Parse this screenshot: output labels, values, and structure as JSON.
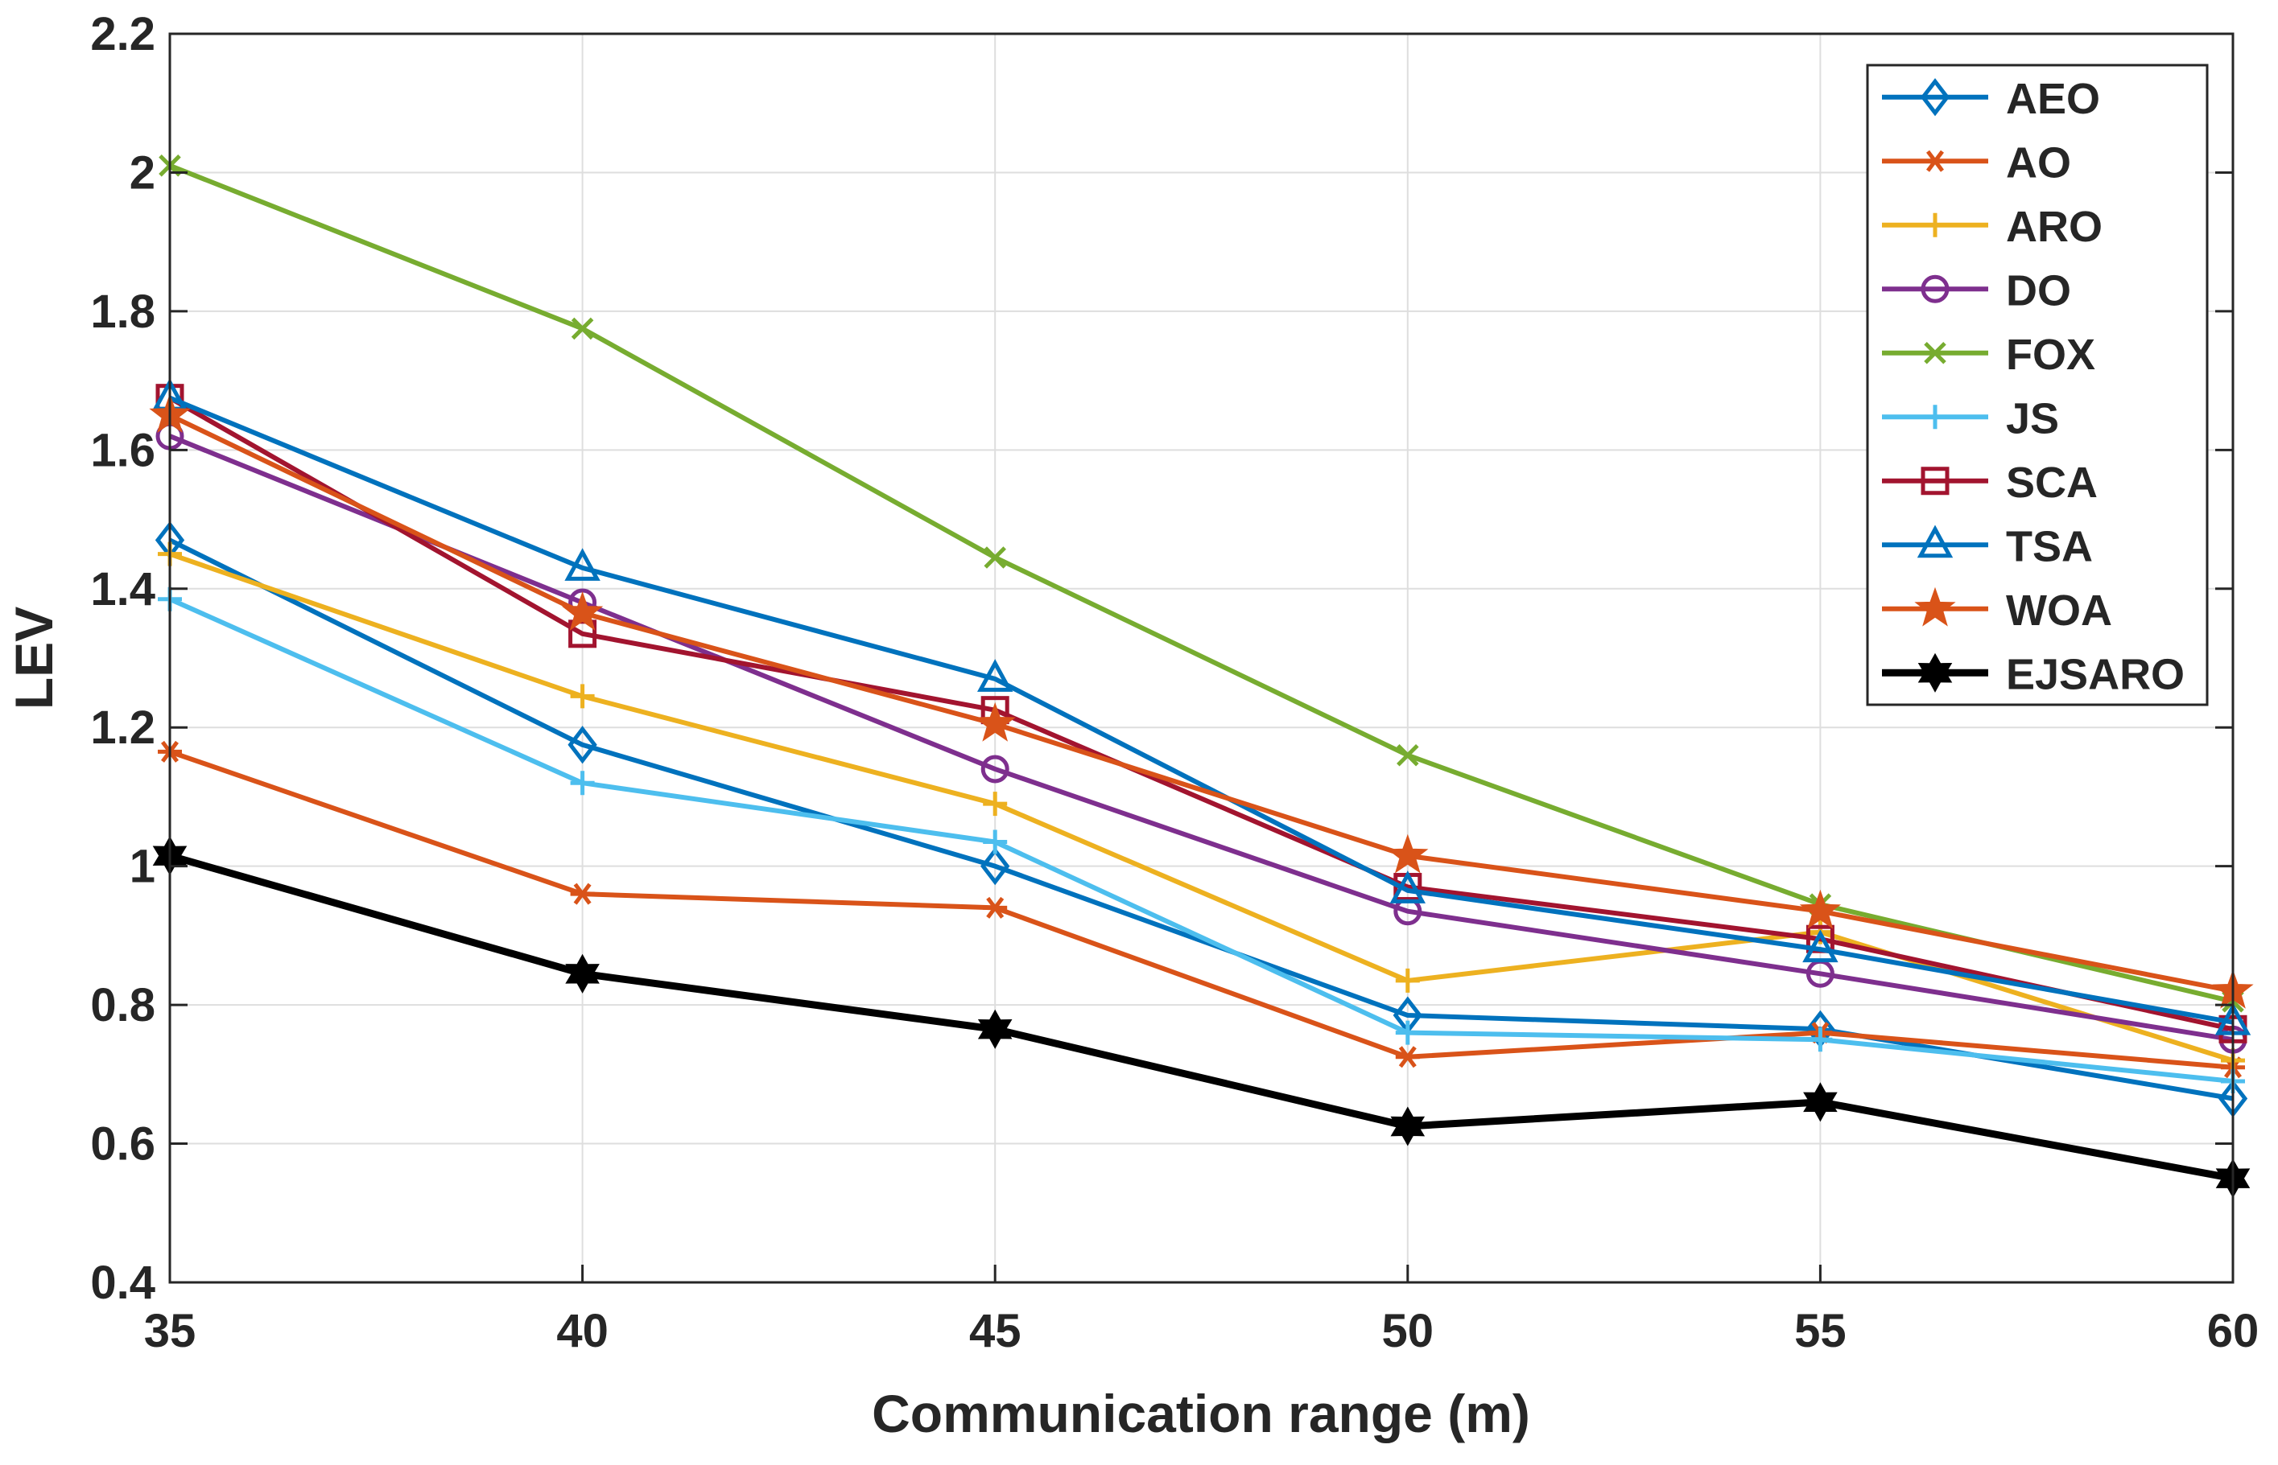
{
  "chart_data": {
    "type": "line",
    "title": "",
    "xlabel": "Communication range (m)",
    "ylabel": "LEV",
    "x": [
      35,
      40,
      45,
      50,
      55,
      60
    ],
    "xlim": [
      35,
      60
    ],
    "ylim": [
      0.4,
      2.2
    ],
    "xticks": [
      "35",
      "40",
      "45",
      "50",
      "55",
      "60"
    ],
    "yticks": [
      "0.4",
      "0.6",
      "0.8",
      "1",
      "1.2",
      "1.4",
      "1.6",
      "1.8",
      "2",
      "2.2"
    ],
    "grid": true,
    "legend_position": "top-right",
    "series": [
      {
        "name": "AEO",
        "color": "#0072BD",
        "marker": "diamond",
        "values": [
          1.47,
          1.175,
          1.0,
          0.785,
          0.765,
          0.665
        ]
      },
      {
        "name": "AO",
        "color": "#D95319",
        "marker": "asterisk",
        "values": [
          1.165,
          0.96,
          0.94,
          0.725,
          0.76,
          0.71
        ]
      },
      {
        "name": "ARO",
        "color": "#EDB120",
        "marker": "plus",
        "values": [
          1.45,
          1.245,
          1.09,
          0.835,
          0.905,
          0.72
        ]
      },
      {
        "name": "DO",
        "color": "#7E2F8E",
        "marker": "circle",
        "values": [
          1.62,
          1.38,
          1.14,
          0.935,
          0.845,
          0.75
        ]
      },
      {
        "name": "FOX",
        "color": "#77AC30",
        "marker": "x",
        "values": [
          2.01,
          1.775,
          1.445,
          1.16,
          0.945,
          0.805
        ]
      },
      {
        "name": "JS",
        "color": "#4DBEEE",
        "marker": "plus",
        "values": [
          1.385,
          1.12,
          1.035,
          0.76,
          0.75,
          0.69
        ]
      },
      {
        "name": "SCA",
        "color": "#A2142F",
        "marker": "square",
        "values": [
          1.675,
          1.335,
          1.225,
          0.97,
          0.895,
          0.765
        ]
      },
      {
        "name": "TSA",
        "color": "#0072BD",
        "marker": "triangle",
        "values": [
          1.675,
          1.43,
          1.27,
          0.965,
          0.88,
          0.775
        ]
      },
      {
        "name": "WOA",
        "color": "#D95319",
        "marker": "pentagram",
        "values": [
          1.65,
          1.365,
          1.205,
          1.015,
          0.935,
          0.82
        ]
      },
      {
        "name": "EJSARO",
        "color": "#000000",
        "marker": "hexagram",
        "values": [
          1.015,
          0.845,
          0.765,
          0.625,
          0.66,
          0.55
        ]
      }
    ]
  }
}
